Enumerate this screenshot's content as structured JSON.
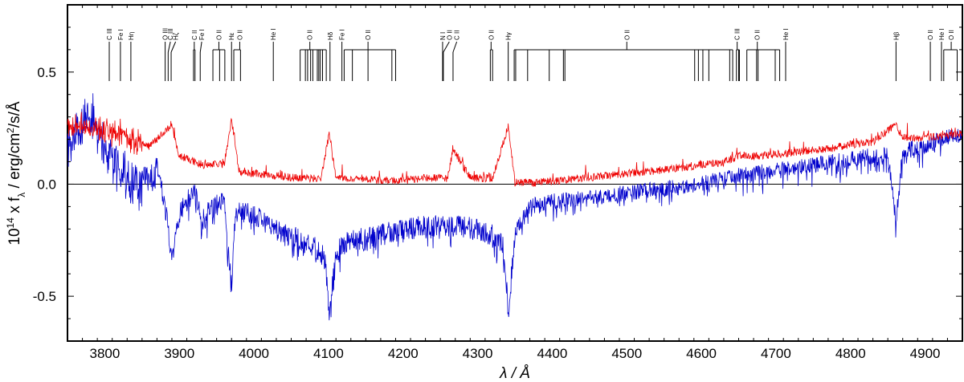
{
  "chart_data": {
    "type": "line",
    "title": "",
    "xlabel": "λ / Å",
    "ylabel_parts": {
      "prefix": "10",
      "exp1": "14",
      "mid": " x f",
      "sub": "λ",
      "unit": " / erg/cm",
      "exp2": "2",
      "tail": "/s/Å"
    },
    "xlim": [
      3750,
      4950
    ],
    "ylim": [
      -0.7,
      0.8
    ],
    "x_ticks": [
      3800,
      3900,
      4000,
      4100,
      4200,
      4300,
      4400,
      4500,
      4600,
      4700,
      4800,
      4900
    ],
    "x_tick_labels": [
      "3800",
      "3900",
      "4000",
      "4100",
      "4200",
      "4300",
      "4400",
      "4500",
      "4600",
      "4700",
      "4800",
      "4900"
    ],
    "y_ticks": [
      0.5,
      0.0,
      -0.5
    ],
    "y_tick_labels": [
      "0.5",
      "0.0",
      "-0.5"
    ],
    "zero_line": true,
    "grid": false,
    "series": [
      {
        "color": "#0000cc",
        "points": [
          [
            3750,
            0.25
          ],
          [
            3760,
            0.32
          ],
          [
            3770,
            0.38
          ],
          [
            3780,
            0.42
          ],
          [
            3790,
            0.35
          ],
          [
            3800,
            0.25
          ],
          [
            3820,
            0.15
          ],
          [
            3840,
            0.1
          ],
          [
            3860,
            0.05
          ],
          [
            3870,
            0.1
          ],
          [
            3880,
            -0.05
          ],
          [
            3890,
            -0.3
          ],
          [
            3900,
            -0.1
          ],
          [
            3910,
            -0.05
          ],
          [
            3920,
            0.0
          ],
          [
            3930,
            -0.15
          ],
          [
            3940,
            -0.08
          ],
          [
            3960,
            -0.05
          ],
          [
            3970,
            -0.42
          ],
          [
            3975,
            -0.1
          ],
          [
            3990,
            -0.1
          ],
          [
            4000,
            -0.12
          ],
          [
            4020,
            -0.15
          ],
          [
            4040,
            -0.2
          ],
          [
            4060,
            -0.22
          ],
          [
            4080,
            -0.25
          ],
          [
            4095,
            -0.3
          ],
          [
            4101,
            -0.55
          ],
          [
            4110,
            -0.28
          ],
          [
            4130,
            -0.22
          ],
          [
            4150,
            -0.22
          ],
          [
            4170,
            -0.2
          ],
          [
            4200,
            -0.18
          ],
          [
            4230,
            -0.16
          ],
          [
            4260,
            -0.16
          ],
          [
            4290,
            -0.17
          ],
          [
            4320,
            -0.2
          ],
          [
            4335,
            -0.25
          ],
          [
            4341,
            -0.55
          ],
          [
            4350,
            -0.2
          ],
          [
            4370,
            -0.08
          ],
          [
            4400,
            -0.06
          ],
          [
            4430,
            -0.05
          ],
          [
            4460,
            -0.04
          ],
          [
            4500,
            -0.02
          ],
          [
            4530,
            -0.01
          ],
          [
            4560,
            0.0
          ],
          [
            4600,
            0.02
          ],
          [
            4640,
            0.05
          ],
          [
            4660,
            0.06
          ],
          [
            4700,
            0.08
          ],
          [
            4740,
            0.1
          ],
          [
            4780,
            0.12
          ],
          [
            4820,
            0.14
          ],
          [
            4850,
            0.15
          ],
          [
            4861,
            -0.15
          ],
          [
            4870,
            0.17
          ],
          [
            4900,
            0.19
          ],
          [
            4920,
            0.22
          ],
          [
            4950,
            0.24
          ]
        ]
      },
      {
        "color": "#ee0000",
        "points": [
          [
            3750,
            0.25
          ],
          [
            3770,
            0.26
          ],
          [
            3790,
            0.24
          ],
          [
            3800,
            0.23
          ],
          [
            3830,
            0.2
          ],
          [
            3860,
            0.16
          ],
          [
            3889,
            0.26
          ],
          [
            3900,
            0.12
          ],
          [
            3930,
            0.08
          ],
          [
            3960,
            0.08
          ],
          [
            3970,
            0.28
          ],
          [
            3980,
            0.05
          ],
          [
            4000,
            0.04
          ],
          [
            4030,
            0.03
          ],
          [
            4060,
            0.02
          ],
          [
            4090,
            0.02
          ],
          [
            4101,
            0.22
          ],
          [
            4110,
            0.02
          ],
          [
            4140,
            0.02
          ],
          [
            4170,
            0.01
          ],
          [
            4200,
            0.01
          ],
          [
            4230,
            0.02
          ],
          [
            4260,
            0.02
          ],
          [
            4267,
            0.15
          ],
          [
            4290,
            0.02
          ],
          [
            4320,
            0.02
          ],
          [
            4341,
            0.25
          ],
          [
            4350,
            0.0
          ],
          [
            4380,
            0.0
          ],
          [
            4410,
            0.01
          ],
          [
            4440,
            0.02
          ],
          [
            4470,
            0.03
          ],
          [
            4500,
            0.04
          ],
          [
            4530,
            0.05
          ],
          [
            4560,
            0.06
          ],
          [
            4600,
            0.08
          ],
          [
            4630,
            0.09
          ],
          [
            4650,
            0.12
          ],
          [
            4680,
            0.12
          ],
          [
            4710,
            0.13
          ],
          [
            4740,
            0.14
          ],
          [
            4770,
            0.15
          ],
          [
            4800,
            0.17
          ],
          [
            4830,
            0.18
          ],
          [
            4861,
            0.26
          ],
          [
            4870,
            0.2
          ],
          [
            4900,
            0.2
          ],
          [
            4930,
            0.21
          ],
          [
            4950,
            0.22
          ]
        ]
      }
    ],
    "line_ids": [
      {
        "label": "C III",
        "x": 3806,
        "group": [
          3806
        ]
      },
      {
        "label": "Fe I",
        "x": 3821,
        "group": [
          3821
        ]
      },
      {
        "label": "Hη",
        "x": 3835,
        "group": [
          3835
        ]
      },
      {
        "label": "O III",
        "x": 3881,
        "group": [
          3881
        ]
      },
      {
        "label": "C III",
        "x": 3888,
        "group": [
          3885
        ]
      },
      {
        "label": "Hζ",
        "x": 3895,
        "group": [
          3889
        ]
      },
      {
        "label": "C II",
        "x": 3920,
        "group": [
          3919,
          3921
        ]
      },
      {
        "label": "Fe I",
        "x": 3930,
        "group": [
          3928
        ]
      },
      {
        "label": "O II",
        "x": 3953,
        "group": [
          3945,
          3954,
          3961
        ]
      },
      {
        "label": "Hε",
        "x": 3970,
        "group": [
          3970
        ]
      },
      {
        "label": "O II",
        "x": 3981,
        "group": [
          3973,
          3982
        ]
      },
      {
        "label": "He I",
        "x": 4026,
        "group": [
          4026
        ]
      },
      {
        "label": "O II",
        "x": 4075,
        "group": [
          4062,
          4069,
          4072,
          4076,
          4079,
          4085,
          4087,
          4089,
          4092,
          4097
        ]
      },
      {
        "label": "Hδ",
        "x": 4102,
        "group": [
          4102
        ]
      },
      {
        "label": "Fe I",
        "x": 4118,
        "group": [
          4118
        ]
      },
      {
        "label": "O II",
        "x": 4153,
        "group": [
          4121,
          4132,
          4153,
          4185,
          4190
        ]
      },
      {
        "label": "N I",
        "x": 4253,
        "group": [
          4253
        ]
      },
      {
        "label": "O II",
        "x": 4262,
        "group": [
          4254
        ]
      },
      {
        "label": "C II",
        "x": 4272,
        "group": [
          4267
        ]
      },
      {
        "label": "O II",
        "x": 4318,
        "group": [
          4317,
          4320
        ]
      },
      {
        "label": "Hγ",
        "x": 4341,
        "group": [
          4341
        ]
      },
      {
        "label": "O II",
        "x": 4500,
        "group": [
          4349,
          4351,
          4367,
          4396,
          4415,
          4417,
          4591,
          4596,
          4602,
          4610,
          4638,
          4642
        ]
      },
      {
        "label": "C III",
        "x": 4648,
        "group": [
          4647,
          4650,
          4651
        ]
      },
      {
        "label": "O II",
        "x": 4675,
        "group": [
          4661,
          4674,
          4676,
          4699,
          4705
        ]
      },
      {
        "label": "He I",
        "x": 4713,
        "group": [
          4713
        ]
      },
      {
        "label": "Hβ",
        "x": 4861,
        "group": [
          4861
        ]
      },
      {
        "label": "O II",
        "x": 4907,
        "group": [
          4907
        ]
      },
      {
        "label": "He I",
        "x": 4922,
        "group": [
          4922
        ]
      },
      {
        "label": "O II",
        "x": 4935,
        "group": [
          4925,
          4943
        ]
      }
    ]
  }
}
